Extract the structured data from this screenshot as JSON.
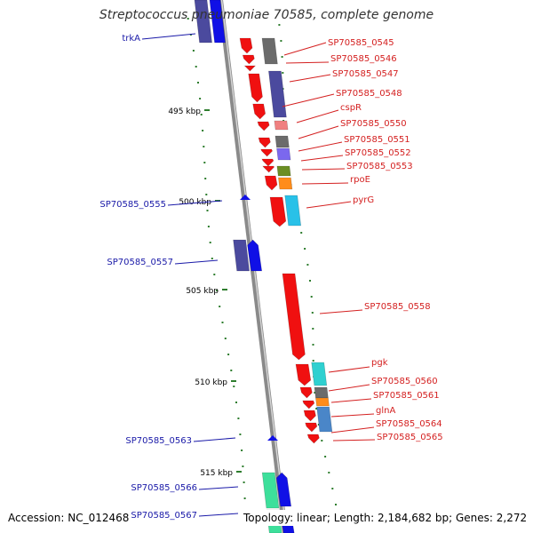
{
  "title": "Streptococcus pneumoniae 70585, complete genome",
  "footer": {
    "accession": "Accession: NC_012468",
    "summary": "Topology: linear; Length: 2,184,682 bp; Genes: 2,272"
  },
  "colors": {
    "forward_label": "#1a1aa8",
    "reverse_label": "#d42020",
    "backbone": "#8a8a8a",
    "tick": "#2e7d2e"
  },
  "scale": {
    "unit": "kbp",
    "ticks": [
      "495 kbp",
      "500 kbp",
      "505 kbp",
      "510 kbp",
      "515 kbp"
    ]
  },
  "genes": [
    {
      "name": "trkA",
      "strand": "forward"
    },
    {
      "name": "SP70585_0545",
      "strand": "reverse"
    },
    {
      "name": "SP70585_0546",
      "strand": "reverse"
    },
    {
      "name": "SP70585_0547",
      "strand": "reverse"
    },
    {
      "name": "SP70585_0548",
      "strand": "reverse"
    },
    {
      "name": "cspR",
      "strand": "reverse"
    },
    {
      "name": "SP70585_0550",
      "strand": "reverse"
    },
    {
      "name": "SP70585_0551",
      "strand": "reverse"
    },
    {
      "name": "SP70585_0552",
      "strand": "reverse"
    },
    {
      "name": "SP70585_0553",
      "strand": "reverse"
    },
    {
      "name": "rpoE",
      "strand": "reverse"
    },
    {
      "name": "pyrG",
      "strand": "reverse"
    },
    {
      "name": "SP70585_0555",
      "strand": "forward"
    },
    {
      "name": "SP70585_0557",
      "strand": "forward"
    },
    {
      "name": "SP70585_0558",
      "strand": "reverse"
    },
    {
      "name": "pgk",
      "strand": "reverse"
    },
    {
      "name": "SP70585_0560",
      "strand": "reverse"
    },
    {
      "name": "SP70585_0561",
      "strand": "reverse"
    },
    {
      "name": "glnA",
      "strand": "reverse"
    },
    {
      "name": "SP70585_0564",
      "strand": "reverse"
    },
    {
      "name": "SP70585_0565",
      "strand": "reverse"
    },
    {
      "name": "SP70585_0563",
      "strand": "forward"
    },
    {
      "name": "SP70585_0566",
      "strand": "forward"
    },
    {
      "name": "SP70585_0567",
      "strand": "forward"
    }
  ]
}
